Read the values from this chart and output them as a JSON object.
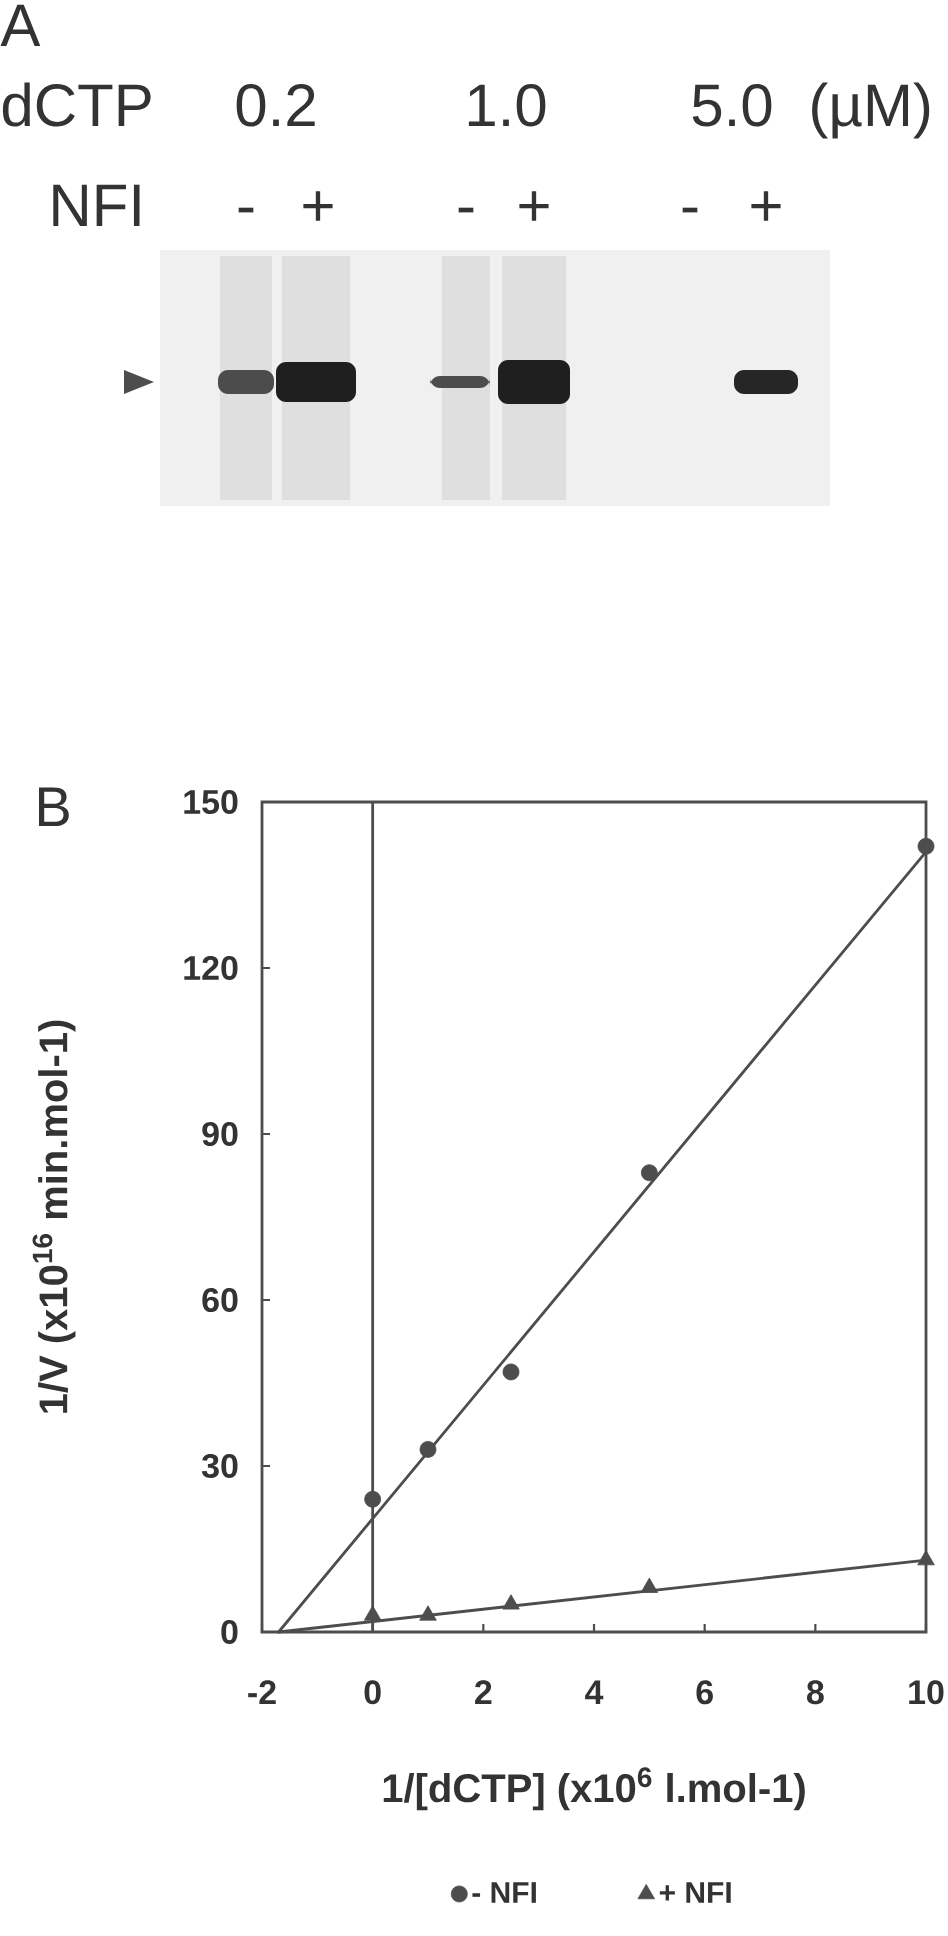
{
  "chart_data": {
    "type": "scatter",
    "xlabel": "1/[dCTP] (x10$^{6}$ l.mol-1)",
    "ylabel": "1/V (x10$^{16}$ min.mol-1)",
    "xlim": [
      -2,
      10
    ],
    "xticks": [
      -2,
      0,
      2,
      4,
      6,
      8,
      10
    ],
    "ylim": [
      0,
      150
    ],
    "yticks": [
      0,
      30,
      60,
      90,
      120,
      150
    ],
    "series": [
      {
        "name": "- NFI",
        "marker": "circle",
        "color": "#4d4d4d",
        "x": [
          0,
          1,
          2.5,
          5,
          10
        ],
        "values": [
          24,
          33,
          47,
          83,
          142
        ]
      },
      {
        "name": "+ NFI",
        "marker": "triangle",
        "color": "#4d4d4d",
        "x": [
          0,
          1,
          2.5,
          5,
          10
        ],
        "values": [
          3,
          3,
          5,
          8,
          13
        ]
      },
      {
        "type": "line",
        "color": "#4d4d4d",
        "x": [
          -1.7,
          10
        ],
        "values": [
          0,
          141
        ]
      },
      {
        "type": "line",
        "color": "#4d4d4d",
        "x": [
          -1.7,
          10
        ],
        "values": [
          0,
          13
        ]
      }
    ],
    "ref_lines": [
      {
        "axis": "x",
        "value": 0,
        "color": "#4d4d4d"
      }
    ],
    "legend": "bottom",
    "annotations": [
      "A",
      "dCTP",
      "0.2",
      "1.0",
      "5.0",
      "(µM)",
      "NFI",
      "-",
      "+",
      "-",
      "+",
      "-",
      "+",
      "B"
    ]
  }
}
